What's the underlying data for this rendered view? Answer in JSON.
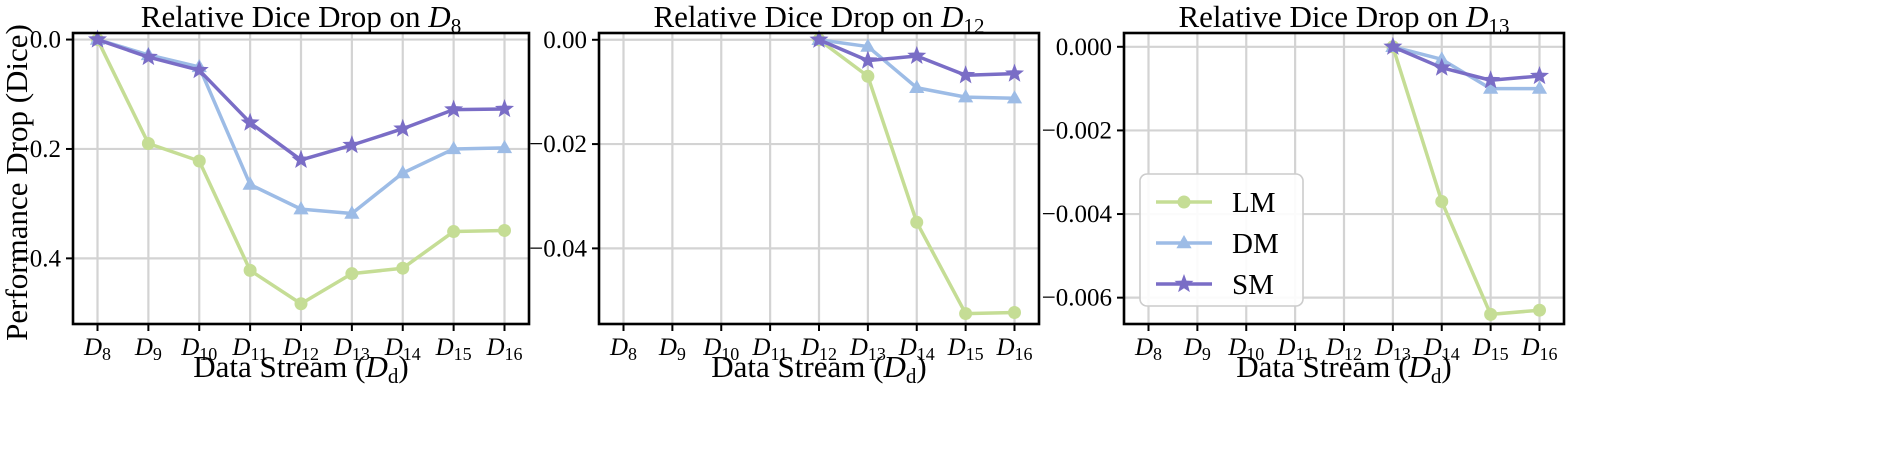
{
  "chart_data": [
    {
      "type": "line",
      "title": "Relative Dice Drop on D8",
      "title_base": "Relative Dice Drop on ",
      "title_sub": "8",
      "xlabel_base": "Data Stream (",
      "xlabel_var": "D",
      "xlabel_sub": "d",
      "xlabel_end": ")",
      "ylabel": "Performance Drop (Dice)",
      "categories": [
        "D8",
        "D9",
        "D10",
        "D11",
        "D12",
        "D13",
        "D14",
        "D15",
        "D16"
      ],
      "category_subs": [
        "8",
        "9",
        "10",
        "11",
        "12",
        "13",
        "14",
        "15",
        "16"
      ],
      "ylim": [
        -0.52,
        0.012
      ],
      "yticks": [
        0.0,
        -0.2,
        -0.4
      ],
      "ytick_labels": [
        "0.0",
        "−0.2",
        "−0.4"
      ],
      "grid": true,
      "series": [
        {
          "name": "LM",
          "color": "#c5dd95",
          "marker": "circle",
          "values": [
            0.0,
            -0.19,
            -0.222,
            -0.422,
            -0.483,
            -0.428,
            -0.418,
            -0.351,
            -0.349
          ]
        },
        {
          "name": "DM",
          "color": "#9dbce6",
          "marker": "triangle",
          "values": [
            0.0,
            -0.028,
            -0.05,
            -0.265,
            -0.31,
            -0.318,
            -0.244,
            -0.2,
            -0.198
          ]
        },
        {
          "name": "SM",
          "color": "#7a6dc6",
          "marker": "star",
          "values": [
            0.0,
            -0.032,
            -0.056,
            -0.152,
            -0.22,
            -0.193,
            -0.163,
            -0.128,
            -0.127
          ]
        }
      ]
    },
    {
      "type": "line",
      "title": "Relative Dice Drop on D12",
      "title_base": "Relative Dice Drop on ",
      "title_sub": "12",
      "xlabel_base": "Data Stream (",
      "xlabel_var": "D",
      "xlabel_sub": "d",
      "xlabel_end": ")",
      "ylabel": "",
      "categories": [
        "D8",
        "D9",
        "D10",
        "D11",
        "D12",
        "D13",
        "D14",
        "D15",
        "D16"
      ],
      "category_subs": [
        "8",
        "9",
        "10",
        "11",
        "12",
        "13",
        "14",
        "15",
        "16"
      ],
      "ylim": [
        -0.0545,
        0.0013
      ],
      "yticks": [
        0.0,
        -0.02,
        -0.04
      ],
      "ytick_labels": [
        "0.00",
        "−0.02",
        "−0.04"
      ],
      "grid": true,
      "series": [
        {
          "name": "LM",
          "color": "#c5dd95",
          "marker": "circle",
          "values": [
            null,
            null,
            null,
            null,
            0.0,
            -0.007,
            -0.035,
            -0.0525,
            -0.0523
          ]
        },
        {
          "name": "DM",
          "color": "#9dbce6",
          "marker": "triangle",
          "values": [
            null,
            null,
            null,
            null,
            0.0,
            -0.0013,
            -0.0092,
            -0.011,
            -0.0112
          ]
        },
        {
          "name": "SM",
          "color": "#7a6dc6",
          "marker": "star",
          "values": [
            null,
            null,
            null,
            null,
            0.0,
            -0.004,
            -0.0031,
            -0.0068,
            -0.0065
          ]
        }
      ]
    },
    {
      "type": "line",
      "title": "Relative Dice Drop on D13",
      "title_base": "Relative Dice Drop on ",
      "title_sub": "13",
      "xlabel_base": "Data Stream (",
      "xlabel_var": "D",
      "xlabel_sub": "d",
      "xlabel_end": ")",
      "ylabel": "",
      "categories": [
        "D8",
        "D9",
        "D10",
        "D11",
        "D12",
        "D13",
        "D14",
        "D15",
        "D16"
      ],
      "category_subs": [
        "8",
        "9",
        "10",
        "11",
        "12",
        "13",
        "14",
        "15",
        "16"
      ],
      "ylim": [
        -0.00663,
        0.00033
      ],
      "yticks": [
        0.0,
        -0.002,
        -0.004,
        -0.006
      ],
      "ytick_labels": [
        "0.000",
        "−0.002",
        "−0.004",
        "−0.006"
      ],
      "grid": true,
      "legend": "center-left",
      "series": [
        {
          "name": "LM",
          "color": "#c5dd95",
          "marker": "circle",
          "values": [
            null,
            null,
            null,
            null,
            null,
            0.0,
            -0.0037,
            -0.0064,
            -0.0063
          ]
        },
        {
          "name": "DM",
          "color": "#9dbce6",
          "marker": "triangle",
          "values": [
            null,
            null,
            null,
            null,
            null,
            0.0,
            -0.0003,
            -0.001,
            -0.001
          ]
        },
        {
          "name": "SM",
          "color": "#7a6dc6",
          "marker": "star",
          "values": [
            null,
            null,
            null,
            null,
            null,
            0.0,
            -0.0005,
            -0.0008,
            -0.0007
          ]
        }
      ]
    }
  ]
}
